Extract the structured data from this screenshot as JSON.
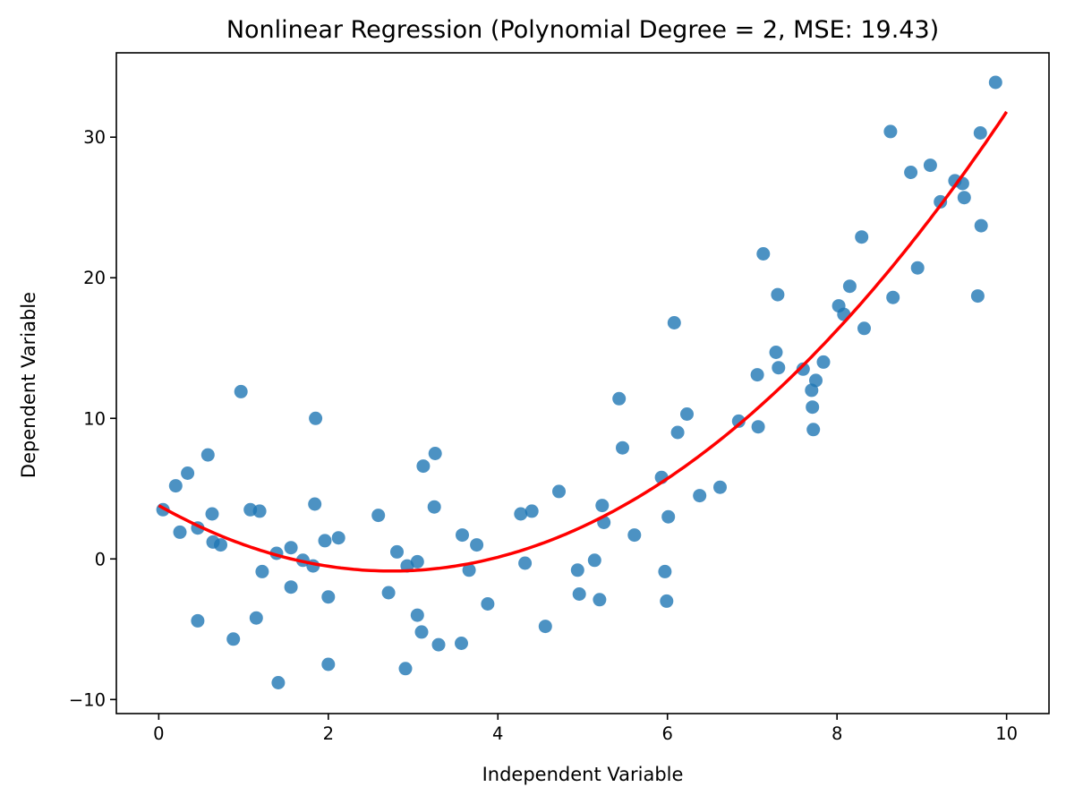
{
  "colors": {
    "points": "#1f77b4",
    "fit_line": "#ff0000"
  },
  "chart_data": {
    "type": "scatter",
    "title": "Nonlinear Regression (Polynomial Degree = 2, MSE: 19.43)",
    "xlabel": "Independent Variable",
    "ylabel": "Dependent Variable",
    "xlim": [
      -0.5,
      10.5
    ],
    "ylim": [
      -11,
      36
    ],
    "xticks": [
      0,
      2,
      4,
      6,
      8,
      10
    ],
    "yticks": [
      -10,
      0,
      10,
      20,
      30
    ],
    "xtick_labels": [
      "0",
      "2",
      "4",
      "6",
      "8",
      "10"
    ],
    "ytick_labels": [
      "−10",
      "0",
      "10",
      "20",
      "30"
    ],
    "grid": false,
    "fit_curve": {
      "degree": 2,
      "coefficients": [
        3.8,
        -3.4,
        0.62
      ],
      "x_range": [
        0,
        10
      ]
    },
    "points": [
      [
        0.05,
        3.5
      ],
      [
        0.2,
        5.2
      ],
      [
        0.25,
        1.9
      ],
      [
        0.34,
        6.1
      ],
      [
        0.46,
        2.2
      ],
      [
        0.46,
        -4.4
      ],
      [
        0.58,
        7.4
      ],
      [
        0.63,
        3.2
      ],
      [
        0.64,
        1.2
      ],
      [
        0.73,
        1.0
      ],
      [
        0.88,
        -5.7
      ],
      [
        0.97,
        11.9
      ],
      [
        1.08,
        3.5
      ],
      [
        1.15,
        -4.2
      ],
      [
        1.19,
        3.4
      ],
      [
        1.22,
        -0.9
      ],
      [
        1.39,
        0.4
      ],
      [
        1.41,
        -8.8
      ],
      [
        1.56,
        0.8
      ],
      [
        1.56,
        -2.0
      ],
      [
        1.7,
        -0.1
      ],
      [
        1.82,
        -0.5
      ],
      [
        1.84,
        3.9
      ],
      [
        1.85,
        10.0
      ],
      [
        1.96,
        1.3
      ],
      [
        2.0,
        -7.5
      ],
      [
        2.0,
        -2.7
      ],
      [
        2.12,
        1.5
      ],
      [
        2.59,
        3.1
      ],
      [
        2.71,
        -2.4
      ],
      [
        2.81,
        0.5
      ],
      [
        2.91,
        -7.8
      ],
      [
        2.93,
        -0.5
      ],
      [
        3.05,
        -0.2
      ],
      [
        3.05,
        -4.0
      ],
      [
        3.1,
        -5.2
      ],
      [
        3.12,
        6.6
      ],
      [
        3.25,
        3.7
      ],
      [
        3.26,
        7.5
      ],
      [
        3.3,
        -6.1
      ],
      [
        3.57,
        -6.0
      ],
      [
        3.58,
        1.7
      ],
      [
        3.66,
        -0.8
      ],
      [
        3.75,
        1.0
      ],
      [
        3.88,
        -3.2
      ],
      [
        4.27,
        3.2
      ],
      [
        4.32,
        -0.3
      ],
      [
        4.4,
        3.4
      ],
      [
        4.56,
        -4.8
      ],
      [
        4.72,
        4.8
      ],
      [
        4.94,
        -0.8
      ],
      [
        4.96,
        -2.5
      ],
      [
        5.14,
        -0.1
      ],
      [
        5.2,
        -2.9
      ],
      [
        5.23,
        3.8
      ],
      [
        5.25,
        2.6
      ],
      [
        5.43,
        11.4
      ],
      [
        5.47,
        7.9
      ],
      [
        5.61,
        1.7
      ],
      [
        5.93,
        5.8
      ],
      [
        5.97,
        -0.9
      ],
      [
        5.99,
        -3.0
      ],
      [
        6.01,
        3.0
      ],
      [
        6.08,
        16.8
      ],
      [
        6.12,
        9.0
      ],
      [
        6.23,
        10.3
      ],
      [
        6.38,
        4.5
      ],
      [
        6.62,
        5.1
      ],
      [
        6.84,
        9.8
      ],
      [
        7.06,
        13.1
      ],
      [
        7.07,
        9.4
      ],
      [
        7.13,
        21.7
      ],
      [
        7.28,
        14.7
      ],
      [
        7.3,
        18.8
      ],
      [
        7.31,
        13.6
      ],
      [
        7.6,
        13.5
      ],
      [
        7.7,
        12.0
      ],
      [
        7.71,
        10.8
      ],
      [
        7.72,
        9.2
      ],
      [
        7.75,
        12.7
      ],
      [
        7.84,
        14.0
      ],
      [
        8.02,
        18.0
      ],
      [
        8.08,
        17.4
      ],
      [
        8.15,
        19.4
      ],
      [
        8.29,
        22.9
      ],
      [
        8.32,
        16.4
      ],
      [
        8.63,
        30.4
      ],
      [
        8.66,
        18.6
      ],
      [
        8.87,
        27.5
      ],
      [
        8.95,
        20.7
      ],
      [
        9.1,
        28.0
      ],
      [
        9.22,
        25.4
      ],
      [
        9.39,
        26.9
      ],
      [
        9.48,
        26.7
      ],
      [
        9.5,
        25.7
      ],
      [
        9.66,
        18.7
      ],
      [
        9.69,
        30.3
      ],
      [
        9.7,
        23.7
      ],
      [
        9.87,
        33.9
      ]
    ]
  }
}
